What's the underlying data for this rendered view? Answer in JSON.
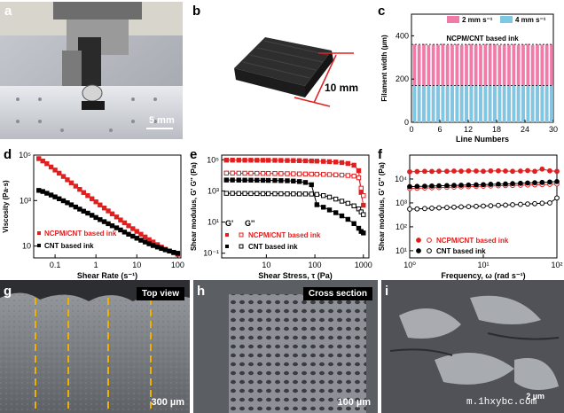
{
  "panel_labels": {
    "a": "a",
    "b": "b",
    "c": "c",
    "d": "d",
    "e": "e",
    "f": "f",
    "g": "g",
    "h": "h",
    "i": "i"
  },
  "photo_a": {
    "scale_text": "5 mm"
  },
  "photo_b": {
    "dimension_text": "10 mm"
  },
  "sem_g": {
    "tag": "Top view",
    "scale_text": "300 µm"
  },
  "sem_h": {
    "tag": "Cross section",
    "scale_text": "100 µm"
  },
  "sem_i": {
    "scale_text": "2 µm",
    "watermark": "m.1hxybc.com"
  },
  "chart_c": {
    "type": "bar",
    "title": "NCPM/CNT based ink",
    "xlabel": "Line Numbers",
    "ylabel": "Filament width (µm)",
    "legend": [
      "2 mm s⁻¹",
      "4 mm s⁻¹"
    ],
    "xticks": [
      "0",
      "6",
      "12",
      "18",
      "24",
      "30"
    ],
    "yticks": [
      "0",
      "200",
      "400"
    ],
    "ylim": [
      0,
      500
    ],
    "xlim": [
      0,
      30
    ],
    "x": [
      1,
      2,
      3,
      4,
      5,
      6,
      7,
      8,
      9,
      10,
      11,
      12,
      13,
      14,
      15,
      16,
      17,
      18,
      19,
      20,
      21,
      22,
      23,
      24,
      25,
      26,
      27,
      28,
      29,
      30
    ],
    "series": [
      {
        "name": "2 mm s⁻¹",
        "values": [
          360,
          358,
          362,
          357,
          360,
          359,
          363,
          358,
          360,
          361,
          357,
          360,
          362,
          359,
          358,
          361,
          363,
          360,
          357,
          360,
          359,
          361,
          358,
          360,
          362,
          357,
          360,
          359,
          361,
          360
        ]
      },
      {
        "name": "4 mm s⁻¹",
        "values": [
          170,
          172,
          168,
          171,
          169,
          173,
          170,
          168,
          172,
          170,
          169,
          171,
          170,
          173,
          168,
          170,
          172,
          169,
          171,
          170,
          168,
          172,
          170,
          171,
          169,
          170,
          173,
          168,
          171,
          170
        ]
      }
    ]
  },
  "chart_d": {
    "type": "scatter",
    "xlabel": "Shear Rate (s⁻¹)",
    "ylabel": "Viscosity (Pa·s)",
    "xscale": "log",
    "yscale": "log",
    "xlim": [
      0.03,
      120
    ],
    "ylim": [
      3,
      100000
    ],
    "xticks": [
      "0.1",
      "1",
      "10",
      "100"
    ],
    "yticks": [
      "10",
      "10³",
      "10⁵"
    ],
    "legend": [
      "NCPM/CNT based ink",
      "CNT based ink"
    ],
    "series": [
      {
        "name": "NCPM/CNT based ink",
        "color": "#e02020",
        "x": [
          0.04,
          0.05,
          0.063,
          0.08,
          0.1,
          0.126,
          0.16,
          0.2,
          0.25,
          0.32,
          0.4,
          0.5,
          0.63,
          0.8,
          1,
          1.26,
          1.6,
          2,
          2.5,
          3.2,
          4,
          5,
          6.3,
          8,
          10,
          12.6,
          16,
          20,
          25,
          32,
          40,
          50,
          63,
          80,
          100
        ],
        "y": [
          70000,
          55000,
          42000,
          30000,
          22000,
          16000,
          11500,
          8200,
          6000,
          4300,
          3100,
          2250,
          1650,
          1200,
          880,
          640,
          470,
          350,
          260,
          190,
          140,
          105,
          78,
          58,
          44,
          33,
          25,
          19,
          15,
          11.5,
          9,
          7.2,
          6,
          5,
          4.3
        ]
      },
      {
        "name": "CNT based ink",
        "color": "#000000",
        "x": [
          0.04,
          0.05,
          0.063,
          0.08,
          0.1,
          0.126,
          0.16,
          0.2,
          0.25,
          0.32,
          0.4,
          0.5,
          0.63,
          0.8,
          1,
          1.26,
          1.6,
          2,
          2.5,
          3.2,
          4,
          5,
          6.3,
          8,
          10,
          12.6,
          16,
          20,
          25,
          32,
          40,
          50,
          63,
          80,
          100
        ],
        "y": [
          2800,
          2500,
          2100,
          1750,
          1450,
          1200,
          980,
          800,
          650,
          520,
          420,
          340,
          280,
          225,
          180,
          145,
          118,
          96,
          78,
          63,
          51,
          41,
          33,
          27,
          22,
          18,
          15,
          12.5,
          10.5,
          9,
          7.8,
          6.8,
          6,
          5.3,
          4.8
        ]
      }
    ]
  },
  "chart_e": {
    "type": "scatter",
    "xlabel": "Shear Stress, τ (Pa)",
    "ylabel": "Shear modulus, G' G'' (Pa)",
    "xscale": "log",
    "yscale": "log",
    "xlim": [
      1.2,
      1300
    ],
    "ylim": [
      0.05,
      200000
    ],
    "xticks": [
      "10",
      "100",
      "1000"
    ],
    "yticks": [
      "10⁻¹",
      "10¹",
      "10³",
      "10⁵"
    ],
    "legend_header": [
      "G'",
      "G''"
    ],
    "legend": [
      "NCPM/CNT based ink",
      "CNT based ink"
    ],
    "series": [
      {
        "name": "NCPM/CNT G'",
        "color": "#e02020",
        "fill": "solid",
        "x": [
          1.5,
          2,
          2.7,
          3.6,
          4.8,
          6.4,
          8.5,
          11,
          15,
          20,
          27,
          36,
          48,
          64,
          85,
          110,
          150,
          200,
          270,
          360,
          480,
          640,
          800,
          900,
          1000
        ],
        "y": [
          95000,
          95000,
          94500,
          94000,
          94000,
          93500,
          93000,
          92500,
          92000,
          91000,
          90000,
          89000,
          88000,
          86000,
          84000,
          82000,
          79000,
          76000,
          72000,
          66000,
          58000,
          45000,
          20000,
          800,
          120
        ]
      },
      {
        "name": "NCPM/CNT G''",
        "color": "#e02020",
        "fill": "open",
        "x": [
          1.5,
          2,
          2.7,
          3.6,
          4.8,
          6.4,
          8.5,
          11,
          15,
          20,
          27,
          36,
          48,
          64,
          85,
          110,
          150,
          200,
          270,
          360,
          480,
          640,
          800,
          900,
          1000
        ],
        "y": [
          14000,
          14000,
          13800,
          13700,
          13600,
          13500,
          13400,
          13300,
          13200,
          13000,
          12800,
          12600,
          12400,
          12200,
          12000,
          11800,
          11500,
          11200,
          10800,
          10400,
          9800,
          9000,
          7000,
          1500,
          500
        ]
      },
      {
        "name": "CNT G'",
        "color": "#000000",
        "fill": "solid",
        "x": [
          1.5,
          2,
          2.7,
          3.6,
          4.8,
          6.4,
          8.5,
          11,
          15,
          20,
          27,
          36,
          48,
          64,
          85,
          110,
          150,
          200,
          270,
          360,
          480,
          640,
          800,
          900,
          1000
        ],
        "y": [
          5000,
          5000,
          4950,
          4900,
          4900,
          4850,
          4800,
          4750,
          4700,
          4600,
          4500,
          4300,
          4000,
          3500,
          2500,
          130,
          90,
          60,
          40,
          25,
          15,
          8,
          4,
          2.5,
          2
        ]
      },
      {
        "name": "CNT G''",
        "color": "#000000",
        "fill": "open",
        "x": [
          1.5,
          2,
          2.7,
          3.6,
          4.8,
          6.4,
          8.5,
          11,
          15,
          20,
          27,
          36,
          48,
          64,
          85,
          110,
          150,
          200,
          270,
          360,
          480,
          640,
          800,
          900,
          1000
        ],
        "y": [
          700,
          700,
          690,
          690,
          680,
          680,
          670,
          670,
          660,
          660,
          650,
          650,
          640,
          640,
          630,
          600,
          500,
          400,
          300,
          220,
          160,
          110,
          70,
          45,
          30
        ]
      }
    ]
  },
  "chart_f": {
    "type": "scatter",
    "xlabel": "Frequency, ω (rad s⁻¹)",
    "ylabel": "Shear modulus, G' G'' (Pa)",
    "xscale": "log",
    "yscale": "log",
    "xlim": [
      1,
      100
    ],
    "ylim": [
      5,
      100000
    ],
    "xticks": [
      "10⁰",
      "10¹",
      "10²"
    ],
    "yticks": [
      "10¹",
      "10²",
      "10³",
      "10⁴"
    ],
    "legend": [
      "NCPM/CNT based ink",
      "CNT based ink"
    ],
    "series": [
      {
        "name": "NCPM/CNT G'",
        "color": "#e02020",
        "fill": "solid",
        "x": [
          1,
          1.26,
          1.6,
          2,
          2.5,
          3.2,
          4,
          5,
          6.3,
          8,
          10,
          12.6,
          16,
          20,
          25,
          32,
          40,
          50,
          63,
          80,
          100
        ],
        "y": [
          20000,
          20500,
          21000,
          20800,
          21200,
          21000,
          21500,
          21200,
          21800,
          21500,
          21000,
          21800,
          22000,
          21500,
          21000,
          21500,
          22500,
          21000,
          26000,
          22000,
          21000
        ]
      },
      {
        "name": "NCPM/CNT G''",
        "color": "#e02020",
        "fill": "open",
        "x": [
          1,
          1.26,
          1.6,
          2,
          2.5,
          3.2,
          4,
          5,
          6.3,
          8,
          10,
          12.6,
          16,
          20,
          25,
          32,
          40,
          50,
          63,
          80,
          100
        ],
        "y": [
          4000,
          4100,
          4200,
          4300,
          4400,
          4500,
          4600,
          4700,
          4800,
          4900,
          5000,
          5100,
          5200,
          5300,
          5400,
          5500,
          5600,
          5700,
          5800,
          6000,
          6200
        ]
      },
      {
        "name": "CNT G'",
        "color": "#000000",
        "fill": "solid",
        "x": [
          1,
          1.26,
          1.6,
          2,
          2.5,
          3.2,
          4,
          5,
          6.3,
          8,
          10,
          12.6,
          16,
          20,
          25,
          32,
          40,
          50,
          63,
          80,
          100
        ],
        "y": [
          4800,
          4900,
          5000,
          5100,
          5200,
          5300,
          5400,
          5500,
          5600,
          5700,
          5800,
          6000,
          6100,
          6200,
          6400,
          6600,
          6800,
          7000,
          7200,
          7500,
          7800
        ]
      },
      {
        "name": "CNT G''",
        "color": "#000000",
        "fill": "open",
        "x": [
          1,
          1.26,
          1.6,
          2,
          2.5,
          3.2,
          4,
          5,
          6.3,
          8,
          10,
          12.6,
          16,
          20,
          25,
          32,
          40,
          50,
          63,
          80,
          100
        ],
        "y": [
          550,
          560,
          580,
          600,
          620,
          640,
          660,
          680,
          700,
          720,
          740,
          760,
          790,
          810,
          840,
          870,
          900,
          930,
          970,
          1000,
          1600
        ]
      }
    ]
  }
}
